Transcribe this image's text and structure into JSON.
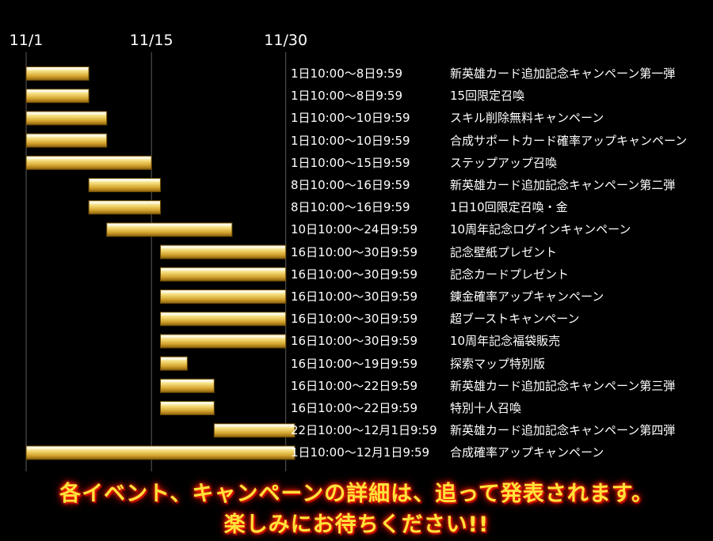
{
  "chart_data": {
    "type": "gantt",
    "x_ticks": [
      {
        "label": "11/1",
        "day": 1
      },
      {
        "label": "11/15",
        "day": 15
      },
      {
        "label": "11/30",
        "day": 30
      }
    ],
    "xlim_days": [
      1,
      32
    ],
    "rows": [
      {
        "period": "1日10:00～8日9:59",
        "event": "新英雄カード追加記念キャンペーン第一弾",
        "start": 1,
        "end": 8
      },
      {
        "period": "1日10:00～8日9:59",
        "event": "15回限定召喚",
        "start": 1,
        "end": 8
      },
      {
        "period": "1日10:00～10日9:59",
        "event": "スキル削除無料キャンペーン",
        "start": 1,
        "end": 10
      },
      {
        "period": "1日10:00～10日9:59",
        "event": "合成サポートカード確率アップキャンペーン",
        "start": 1,
        "end": 10
      },
      {
        "period": "1日10:00～15日9:59",
        "event": "ステップアップ召喚",
        "start": 1,
        "end": 15
      },
      {
        "period": "8日10:00～16日9:59",
        "event": "新英雄カード追加記念キャンペーン第二弾",
        "start": 8,
        "end": 16
      },
      {
        "period": "8日10:00～16日9:59",
        "event": "1日10回限定召喚・金",
        "start": 8,
        "end": 16
      },
      {
        "period": "10日10:00～24日9:59",
        "event": "10周年記念ログインキャンペーン",
        "start": 10,
        "end": 24
      },
      {
        "period": "16日10:00～30日9:59",
        "event": "記念壁紙プレゼント",
        "start": 16,
        "end": 30
      },
      {
        "period": "16日10:00～30日9:59",
        "event": "記念カードプレゼント",
        "start": 16,
        "end": 30
      },
      {
        "period": "16日10:00～30日9:59",
        "event": "錬金確率アップキャンペーン",
        "start": 16,
        "end": 30
      },
      {
        "period": "16日10:00～30日9:59",
        "event": "超ブーストキャンペーン",
        "start": 16,
        "end": 30
      },
      {
        "period": "16日10:00～30日9:59",
        "event": "10周年記念福袋販売",
        "start": 16,
        "end": 30
      },
      {
        "period": "16日10:00～19日9:59",
        "event": "探索マップ特別版",
        "start": 16,
        "end": 19
      },
      {
        "period": "16日10:00～22日9:59",
        "event": "新英雄カード追加記念キャンペーン第三弾",
        "start": 16,
        "end": 22
      },
      {
        "period": "16日10:00～22日9:59",
        "event": "特別十人召喚",
        "start": 16,
        "end": 22
      },
      {
        "period": "22日10:00～12月1日9:59",
        "event": "新英雄カード追加記念キャンペーン第四弾",
        "start": 22,
        "end": 31
      },
      {
        "period": "1日10:00～12月1日9:59",
        "event": "合成確率アップキャンペーン",
        "start": 1,
        "end": 31
      }
    ]
  },
  "footer": {
    "line1": "各イベント、キャンペーンの詳細は、追って発表されます。",
    "line2": "楽しみにお待ちください!!"
  },
  "colors": {
    "background": "#000000",
    "bar_light": "#fff6c0",
    "bar_mid": "#e8c24a",
    "bar_dark": "#9a6e10",
    "gridline": "#5a5a5a",
    "footer_text": "#ffe23a",
    "footer_glow": "#ff2a00"
  }
}
